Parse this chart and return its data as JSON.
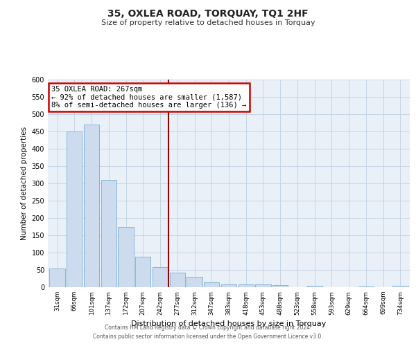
{
  "title": "35, OXLEA ROAD, TORQUAY, TQ1 2HF",
  "subtitle": "Size of property relative to detached houses in Torquay",
  "xlabel": "Distribution of detached houses by size in Torquay",
  "ylabel": "Number of detached properties",
  "bar_labels": [
    "31sqm",
    "66sqm",
    "101sqm",
    "137sqm",
    "172sqm",
    "207sqm",
    "242sqm",
    "277sqm",
    "312sqm",
    "347sqm",
    "383sqm",
    "418sqm",
    "453sqm",
    "488sqm",
    "523sqm",
    "558sqm",
    "593sqm",
    "629sqm",
    "664sqm",
    "699sqm",
    "734sqm"
  ],
  "bar_values": [
    54,
    450,
    470,
    310,
    175,
    88,
    58,
    42,
    30,
    15,
    8,
    9,
    8,
    7,
    0,
    4,
    0,
    0,
    3,
    0,
    4
  ],
  "bar_color": "#ccdcee",
  "bar_edgecolor": "#7aaed4",
  "grid_color": "#c5d5e5",
  "bg_color": "#eaf0f8",
  "vline_x": 6.5,
  "vline_color": "#990000",
  "annotation_text": "35 OXLEA ROAD: 267sqm\n← 92% of detached houses are smaller (1,587)\n8% of semi-detached houses are larger (136) →",
  "annotation_box_facecolor": "#ffffff",
  "annotation_box_edgecolor": "#cc0000",
  "ylim": [
    0,
    600
  ],
  "yticks": [
    0,
    50,
    100,
    150,
    200,
    250,
    300,
    350,
    400,
    450,
    500,
    550,
    600
  ],
  "footer1": "Contains HM Land Registry data © Crown copyright and database right 2024.",
  "footer2": "Contains public sector information licensed under the Open Government Licence v3.0."
}
